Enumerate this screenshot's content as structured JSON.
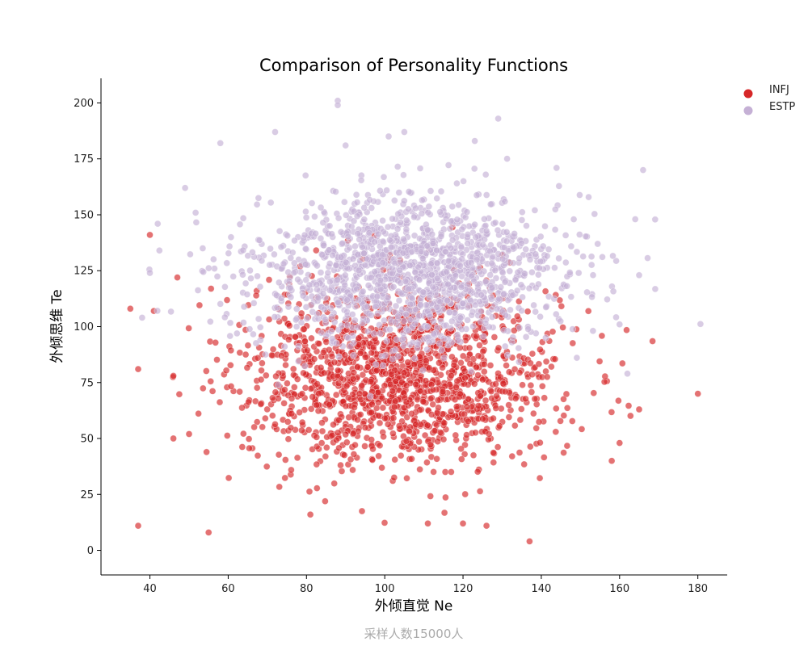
{
  "chart_data": {
    "type": "scatter",
    "title": "Comparison of Personality Functions",
    "xlabel": "外倾直觉 Ne",
    "ylabel": "外倾思维 Te",
    "footer": "采样人数15000人",
    "xlim": [
      27.5,
      187.5
    ],
    "ylim": [
      -11,
      211
    ],
    "xticks": [
      40,
      60,
      80,
      100,
      120,
      140,
      160,
      180
    ],
    "yticks": [
      0,
      25,
      50,
      75,
      100,
      125,
      150,
      175,
      200
    ],
    "grid": false,
    "legend_position": "top-right",
    "series": [
      {
        "name": "INFJ",
        "color": "#d62728",
        "distribution": {
          "x_mean": 104,
          "x_sd": 20,
          "y_mean": 78,
          "y_sd": 20
        },
        "points": [
          {
            "x": 35,
            "y": 108
          },
          {
            "x": 37,
            "y": 81
          },
          {
            "x": 37,
            "y": 11
          },
          {
            "x": 40,
            "y": 141
          },
          {
            "x": 41,
            "y": 107
          },
          {
            "x": 46,
            "y": 78
          },
          {
            "x": 46,
            "y": 50
          },
          {
            "x": 47,
            "y": 122
          },
          {
            "x": 50,
            "y": 52
          },
          {
            "x": 55,
            "y": 8
          },
          {
            "x": 137,
            "y": 4
          },
          {
            "x": 180,
            "y": 70
          },
          {
            "x": 165,
            "y": 63
          },
          {
            "x": 126,
            "y": 11
          },
          {
            "x": 120,
            "y": 12
          },
          {
            "x": 111,
            "y": 12
          },
          {
            "x": 81,
            "y": 16
          },
          {
            "x": 160,
            "y": 48
          },
          {
            "x": 158,
            "y": 40
          },
          {
            "x": 130,
            "y": 132
          }
        ]
      },
      {
        "name": "ESTP",
        "color": "#c5b0d5",
        "distribution": {
          "x_mean": 106,
          "x_sd": 20,
          "y_mean": 124,
          "y_sd": 17
        },
        "points": [
          {
            "x": 88,
            "y": 201
          },
          {
            "x": 88,
            "y": 199
          },
          {
            "x": 129,
            "y": 193
          },
          {
            "x": 72,
            "y": 187
          },
          {
            "x": 105,
            "y": 187
          },
          {
            "x": 101,
            "y": 185
          },
          {
            "x": 123,
            "y": 183
          },
          {
            "x": 58,
            "y": 182
          },
          {
            "x": 90,
            "y": 181
          },
          {
            "x": 166,
            "y": 170
          },
          {
            "x": 164,
            "y": 148
          },
          {
            "x": 165,
            "y": 123
          },
          {
            "x": 38,
            "y": 104
          },
          {
            "x": 40,
            "y": 124
          },
          {
            "x": 42,
            "y": 146
          },
          {
            "x": 49,
            "y": 162
          },
          {
            "x": 162,
            "y": 79
          },
          {
            "x": 160,
            "y": 101
          }
        ]
      }
    ]
  }
}
